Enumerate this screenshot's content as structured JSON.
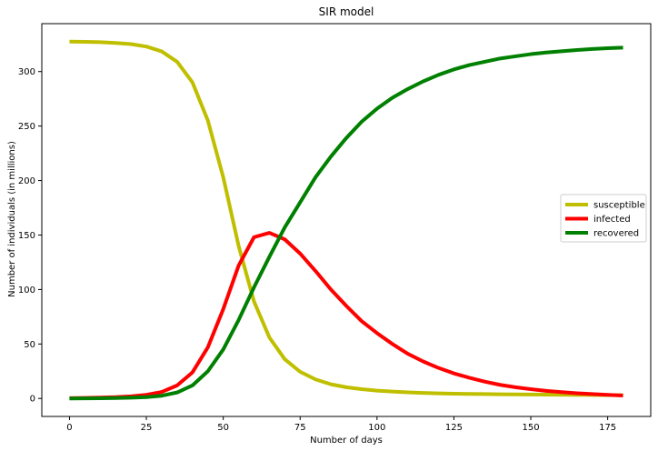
{
  "chart_data": {
    "type": "line",
    "title": "SIR model",
    "xlabel": "Number of days",
    "ylabel": "Number of individuals (in millions)",
    "xlim": [
      -9,
      189
    ],
    "ylim": [
      -16.5,
      344
    ],
    "xticks": [
      0,
      25,
      50,
      75,
      100,
      125,
      150,
      175
    ],
    "yticks": [
      0,
      50,
      100,
      150,
      200,
      250,
      300
    ],
    "grid": false,
    "legend_position": "center-right",
    "x": [
      0,
      5,
      10,
      15,
      20,
      25,
      30,
      35,
      40,
      45,
      50,
      55,
      60,
      65,
      70,
      75,
      80,
      85,
      90,
      95,
      100,
      105,
      110,
      115,
      120,
      125,
      130,
      135,
      140,
      145,
      150,
      155,
      160,
      165,
      170,
      175,
      180
    ],
    "series": [
      {
        "name": "susceptible",
        "color": "#bfbf00",
        "values": [
          327.5,
          327.3,
          327.0,
          326.3,
          325.2,
          323.0,
          318.5,
          309.0,
          290.0,
          255.0,
          203.0,
          140.0,
          89.0,
          56.0,
          36.0,
          24.5,
          17.5,
          13.0,
          10.3,
          8.5,
          7.2,
          6.3,
          5.6,
          5.1,
          4.7,
          4.4,
          4.2,
          4.0,
          3.85,
          3.7,
          3.6,
          3.5,
          3.4,
          3.3,
          3.2,
          3.1,
          3.0
        ]
      },
      {
        "name": "infected",
        "color": "#ff0000",
        "values": [
          0.3,
          0.5,
          0.8,
          1.2,
          2.0,
          3.3,
          6.0,
          12.0,
          24.0,
          47.0,
          82.0,
          122.0,
          148.0,
          152.0,
          146.0,
          133.0,
          117.0,
          100.0,
          85.0,
          71.0,
          60.0,
          50.0,
          41.0,
          34.0,
          28.0,
          23.0,
          19.0,
          15.5,
          12.5,
          10.3,
          8.5,
          7.0,
          5.8,
          4.8,
          4.0,
          3.3,
          2.7
        ]
      },
      {
        "name": "recovered",
        "color": "#008000",
        "values": [
          0.0,
          0.1,
          0.2,
          0.4,
          0.7,
          1.2,
          2.5,
          5.5,
          12.0,
          25.0,
          45.0,
          72.0,
          102.0,
          130.0,
          157.0,
          180.0,
          203.0,
          222.0,
          239.0,
          254.0,
          266.0,
          276.0,
          284.0,
          291.0,
          297.0,
          302.0,
          306.0,
          309.0,
          312.0,
          314.0,
          316.0,
          317.5,
          318.7,
          319.8,
          320.7,
          321.5,
          322.0
        ]
      }
    ]
  }
}
